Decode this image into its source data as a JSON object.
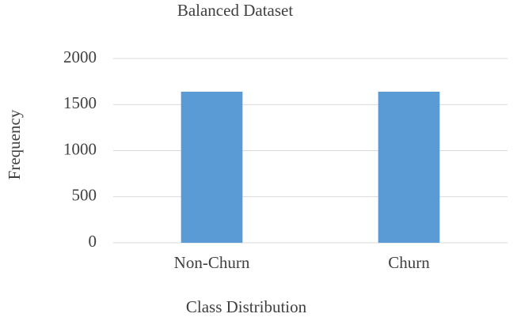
{
  "chart_data": {
    "type": "bar",
    "title": "Balanced Dataset",
    "x_label": "Class Distribution",
    "y_label": "Frequency",
    "categories": [
      "Non-Churn",
      "Churn"
    ],
    "values": [
      1640,
      1640
    ],
    "color": "#5b9bd5",
    "ylim": [
      0,
      2000
    ],
    "yticks": [
      0,
      500,
      1000,
      1500,
      2000
    ],
    "grid": true
  }
}
